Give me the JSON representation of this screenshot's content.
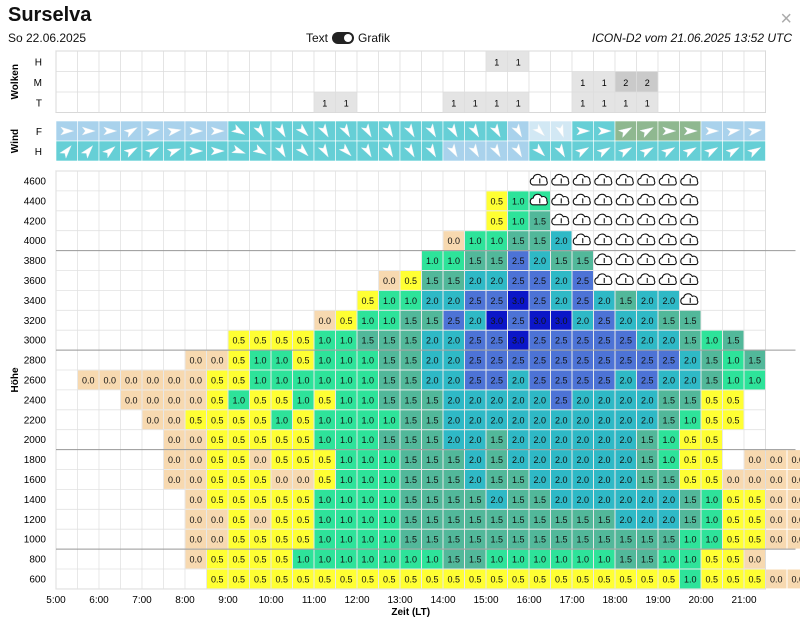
{
  "header": {
    "title": "Surselva",
    "date": "So 22.06.2025",
    "toggle_left": "Text",
    "toggle_right": "Grafik",
    "model": "ICON-D2 vom 21.06.2025 13:52 UTC",
    "close": "×"
  },
  "chart_data": {
    "type": "heatmap",
    "xlabel": "Zeit (LT)",
    "ylabel": "Höhe",
    "x_ticks": [
      "5:00",
      "6:00",
      "7:00",
      "8:00",
      "9:00",
      "10:00",
      "11:00",
      "12:00",
      "13:00",
      "14:00",
      "15:00",
      "16:00",
      "17:00",
      "18:00",
      "19:00",
      "20:00",
      "21:00"
    ],
    "time_slots": 33,
    "x_start": "5:00",
    "slot_minutes": 30,
    "levels": [
      4600,
      4400,
      4200,
      4000,
      3800,
      3600,
      3400,
      3200,
      3000,
      2800,
      2600,
      2400,
      2200,
      2000,
      1800,
      1600,
      1400,
      1200,
      1000,
      800,
      600
    ],
    "y_tick_labels": [
      "4600",
      "4400",
      "4200",
      "4000",
      "3800",
      "3600",
      "3400",
      "3200",
      "3000",
      "2800",
      "2600",
      "2400",
      "2200",
      "2000",
      "1800",
      "1600",
      "1400",
      "1200",
      "1000",
      "800",
      "600"
    ],
    "heavy_lines": [
      4000,
      3000,
      2000,
      1000
    ],
    "wolken": {
      "label": "Wolken",
      "rows": [
        {
          "name": "H",
          "cells": [
            [
              20,
              "1"
            ],
            [
              21,
              "1"
            ]
          ]
        },
        {
          "name": "M",
          "cells": [
            [
              24,
              "1"
            ],
            [
              25,
              "1"
            ],
            [
              26,
              "2"
            ],
            [
              27,
              "2"
            ]
          ]
        },
        {
          "name": "T",
          "cells": [
            [
              12,
              "1"
            ],
            [
              13,
              "1"
            ],
            [
              18,
              "1"
            ],
            [
              19,
              "1"
            ],
            [
              20,
              "1"
            ],
            [
              21,
              "1"
            ],
            [
              24,
              "1"
            ],
            [
              25,
              "1"
            ],
            [
              26,
              "1"
            ],
            [
              27,
              "1"
            ]
          ]
        }
      ],
      "colors": {
        "1": "#e4e4e4",
        "2": "#cacaca"
      }
    },
    "wind": {
      "label": "Wind",
      "rows": [
        {
          "name": "F",
          "dirs": [
            90,
            90,
            90,
            60,
            80,
            80,
            90,
            90,
            120,
            150,
            150,
            135,
            150,
            150,
            150,
            150,
            150,
            150,
            150,
            150,
            150,
            150,
            135,
            160,
            90,
            90,
            60,
            60,
            90,
            90,
            90,
            80,
            80
          ],
          "shades": [
            2,
            2,
            2,
            2,
            2,
            2,
            2,
            2,
            3,
            3,
            3,
            3,
            3,
            3,
            3,
            3,
            3,
            3,
            3,
            3,
            3,
            2,
            1,
            1,
            3,
            3,
            4,
            4,
            4,
            4,
            2,
            2,
            2
          ]
        },
        {
          "name": "H",
          "dirs": [
            40,
            40,
            50,
            60,
            60,
            70,
            90,
            90,
            110,
            120,
            150,
            135,
            150,
            135,
            150,
            150,
            150,
            150,
            150,
            150,
            150,
            150,
            135,
            150,
            60,
            60,
            60,
            60,
            60,
            60,
            60,
            60,
            60
          ],
          "shades": [
            3,
            3,
            3,
            3,
            3,
            3,
            3,
            3,
            3,
            3,
            3,
            3,
            3,
            3,
            3,
            3,
            3,
            3,
            2,
            2,
            2,
            2,
            3,
            3,
            3,
            3,
            3,
            3,
            3,
            3,
            3,
            3,
            3
          ]
        }
      ],
      "shade_colors": [
        "#ffffff",
        "#d2e8f4",
        "#a9d2ec",
        "#66cfd6",
        "#8fb890"
      ]
    },
    "value_colors": {
      "0.0": "#f7d9b0",
      "0.5": "#ffff33",
      "1.0": "#2ee39a",
      "1.5": "#52b89a",
      "2.0": "#2fb9c6",
      "2.5": "#4d73d6",
      "3.0": "#0b16c8"
    },
    "cloud_symbol": "cloud-icon",
    "cloud_cells": {
      "4600": [
        22,
        23,
        24,
        25,
        26,
        27,
        28,
        29
      ],
      "4400": [
        22,
        23,
        24,
        25,
        26,
        27,
        28,
        29
      ],
      "4200": [
        23,
        24,
        25,
        26,
        27,
        28,
        29
      ],
      "4000": [
        24,
        25,
        26,
        27,
        28,
        29
      ],
      "3800": [
        25,
        26,
        27,
        28,
        29
      ],
      "3600": [
        25,
        26,
        27,
        28,
        29
      ],
      "3400": [
        29
      ]
    },
    "rows": [
      {
        "level": 4400,
        "start": 20,
        "values": [
          "0.5",
          "1.0",
          "1.0"
        ]
      },
      {
        "level": 4200,
        "start": 20,
        "values": [
          "0.5",
          "1.0",
          "1.5"
        ]
      },
      {
        "level": 4000,
        "start": 18,
        "values": [
          "0.0",
          "1.0",
          "1.0",
          "1.5",
          "1.5",
          "2.0"
        ]
      },
      {
        "level": 3800,
        "start": 17,
        "values": [
          "1.0",
          "1.0",
          "1.5",
          "1.5",
          "2.5",
          "2.0",
          "1.5",
          "1.5"
        ]
      },
      {
        "level": 3600,
        "start": 15,
        "values": [
          "0.0",
          "0.5",
          "1.5",
          "1.5",
          "2.0",
          "2.0",
          "2.5",
          "2.5",
          "2.0",
          "2.5"
        ]
      },
      {
        "level": 3400,
        "start": 14,
        "values": [
          "0.5",
          "1.0",
          "1.0",
          "2.0",
          "2.0",
          "2.5",
          "2.5",
          "3.0",
          "2.5",
          "2.0",
          "2.5",
          "2.0",
          "1.5",
          "2.0",
          "2.0"
        ]
      },
      {
        "level": 3200,
        "start": 12,
        "values": [
          "0.0",
          "0.5",
          "1.0",
          "1.0",
          "1.5",
          "1.5",
          "2.5",
          "2.0",
          "3.0",
          "2.5",
          "3.0",
          "3.0",
          "2.0",
          "2.5",
          "2.0",
          "2.0",
          "1.5",
          "1.5"
        ]
      },
      {
        "level": 3000,
        "start": 8,
        "values": [
          "0.5",
          "0.5",
          "0.5",
          "0.5",
          "1.0",
          "1.0",
          "1.5",
          "1.5",
          "1.5",
          "2.0",
          "2.0",
          "2.5",
          "2.5",
          "3.0",
          "2.5",
          "2.5",
          "2.5",
          "2.5",
          "2.5",
          "2.0",
          "2.0",
          "1.5",
          "1.0",
          "1.5"
        ]
      },
      {
        "level": 2800,
        "start": 6,
        "values": [
          "0.0",
          "0.0",
          "0.5",
          "1.0",
          "1.0",
          "0.5",
          "1.0",
          "1.0",
          "1.0",
          "1.5",
          "1.5",
          "2.0",
          "2.0",
          "2.5",
          "2.5",
          "2.5",
          "2.5",
          "2.5",
          "2.5",
          "2.5",
          "2.5",
          "2.5",
          "2.5",
          "2.0",
          "1.5",
          "1.0",
          "1.5"
        ]
      },
      {
        "level": 2600,
        "start": 1,
        "values": [
          "0.0",
          "0.0",
          "0.0",
          "0.0",
          "0.0",
          "0.0",
          "0.5",
          "0.5",
          "1.0",
          "1.0",
          "1.0",
          "1.0",
          "1.0",
          "1.0",
          "1.5",
          "1.5",
          "2.0",
          "2.0",
          "2.5",
          "2.5",
          "2.0",
          "2.5",
          "2.5",
          "2.5",
          "2.5",
          "2.0",
          "2.5",
          "2.0",
          "2.0",
          "1.5",
          "1.0",
          "1.0"
        ]
      },
      {
        "level": 2400,
        "start": 3,
        "values": [
          "0.0",
          "0.0",
          "0.0",
          "0.0",
          "0.5",
          "1.0",
          "0.5",
          "0.5",
          "1.0",
          "0.5",
          "1.0",
          "1.0",
          "1.5",
          "1.5",
          "1.5",
          "2.0",
          "2.0",
          "2.0",
          "2.0",
          "2.0",
          "2.5",
          "2.0",
          "2.0",
          "2.0",
          "2.0",
          "1.5",
          "1.5",
          "0.5",
          "0.5"
        ]
      },
      {
        "level": 2200,
        "start": 4,
        "values": [
          "0.0",
          "0.0",
          "0.5",
          "0.5",
          "0.5",
          "0.5",
          "1.0",
          "0.5",
          "1.0",
          "1.0",
          "1.0",
          "1.0",
          "1.5",
          "1.5",
          "2.0",
          "2.0",
          "2.0",
          "2.0",
          "2.0",
          "2.0",
          "2.0",
          "2.0",
          "2.0",
          "2.0",
          "1.5",
          "1.0",
          "0.5",
          "0.5"
        ]
      },
      {
        "level": 2000,
        "start": 5,
        "values": [
          "0.0",
          "0.0",
          "0.5",
          "0.5",
          "0.5",
          "0.5",
          "0.5",
          "1.0",
          "1.0",
          "1.0",
          "1.5",
          "1.5",
          "1.5",
          "2.0",
          "2.0",
          "1.5",
          "2.0",
          "2.0",
          "2.0",
          "2.0",
          "2.0",
          "2.0",
          "1.5",
          "1.0",
          "0.5",
          "0.5"
        ]
      },
      {
        "level": 1800,
        "start": 5,
        "values": [
          "0.0",
          "0.0",
          "0.5",
          "0.5",
          "0.0",
          "0.5",
          "0.5",
          "0.5",
          "1.0",
          "1.0",
          "1.0",
          "1.5",
          "1.5",
          "1.5",
          "2.0",
          "1.5",
          "2.0",
          "2.0",
          "2.0",
          "2.0",
          "2.0",
          "2.0",
          "1.5",
          "1.0",
          "0.5",
          "0.5",
          null,
          "0.0",
          "0.0",
          "0.0"
        ]
      },
      {
        "level": 1600,
        "start": 5,
        "values": [
          "0.0",
          "0.0",
          "0.5",
          "0.5",
          "0.5",
          "0.0",
          "0.0",
          "0.5",
          "1.0",
          "1.0",
          "1.0",
          "1.5",
          "1.5",
          "1.5",
          "2.0",
          "1.5",
          "1.5",
          "2.0",
          "2.0",
          "2.0",
          "2.0",
          "2.0",
          "1.5",
          "1.5",
          "0.5",
          "0.5",
          "0.0",
          "0.0",
          "0.0",
          "0.0"
        ]
      },
      {
        "level": 1400,
        "start": 6,
        "values": [
          "0.0",
          "0.5",
          "0.5",
          "0.5",
          "0.5",
          "0.5",
          "1.0",
          "1.0",
          "1.0",
          "1.0",
          "1.5",
          "1.5",
          "1.5",
          "1.5",
          "2.0",
          "1.5",
          "1.5",
          "2.0",
          "2.0",
          "2.0",
          "2.0",
          "2.0",
          "2.0",
          "1.5",
          "1.0",
          "0.5",
          "0.5",
          "0.0",
          "0.0",
          "0.0",
          "0.0"
        ]
      },
      {
        "level": 1200,
        "start": 6,
        "values": [
          "0.0",
          "0.0",
          "0.5",
          "0.0",
          "0.5",
          "0.5",
          "1.0",
          "1.0",
          "1.0",
          "1.0",
          "1.5",
          "1.5",
          "1.5",
          "1.5",
          "1.5",
          "1.5",
          "1.5",
          "1.5",
          "1.5",
          "1.5",
          "2.0",
          "2.0",
          "2.0",
          "1.5",
          "1.0",
          "0.5",
          "0.5",
          "0.0",
          "0.0",
          "0.0"
        ]
      },
      {
        "level": 1000,
        "start": 6,
        "values": [
          "0.0",
          "0.0",
          "0.5",
          "0.5",
          "0.5",
          "0.5",
          "1.0",
          "1.0",
          "1.0",
          "1.0",
          "1.5",
          "1.5",
          "1.5",
          "1.5",
          "1.5",
          "1.5",
          "1.5",
          "1.5",
          "1.5",
          "1.5",
          "1.5",
          "1.5",
          "1.5",
          "1.0",
          "1.0",
          "0.5",
          "0.5",
          "0.0",
          "0.0",
          "0.0"
        ]
      },
      {
        "level": 800,
        "start": 6,
        "values": [
          "0.0",
          "0.5",
          "0.5",
          "0.5",
          "0.5",
          "1.0",
          "1.0",
          "1.0",
          "1.0",
          "1.0",
          "1.0",
          "1.0",
          "1.5",
          "1.5",
          "1.0",
          "1.0",
          "1.0",
          "1.0",
          "1.0",
          "1.0",
          "1.5",
          "1.5",
          "1.0",
          "1.0",
          "0.5",
          "0.5",
          "0.0",
          null,
          null,
          null,
          "0.0"
        ]
      },
      {
        "level": 600,
        "start": 7,
        "values": [
          "0.5",
          "0.5",
          "0.5",
          "0.5",
          "0.5",
          "0.5",
          "0.5",
          "0.5",
          "0.5",
          "0.5",
          "0.5",
          "0.5",
          "0.5",
          "0.5",
          "0.5",
          "0.5",
          "0.5",
          "0.5",
          "0.5",
          "0.5",
          "0.5",
          "0.5",
          "1.0",
          "0.5",
          "0.5",
          "0.5",
          "0.0",
          "0.0"
        ]
      }
    ]
  }
}
